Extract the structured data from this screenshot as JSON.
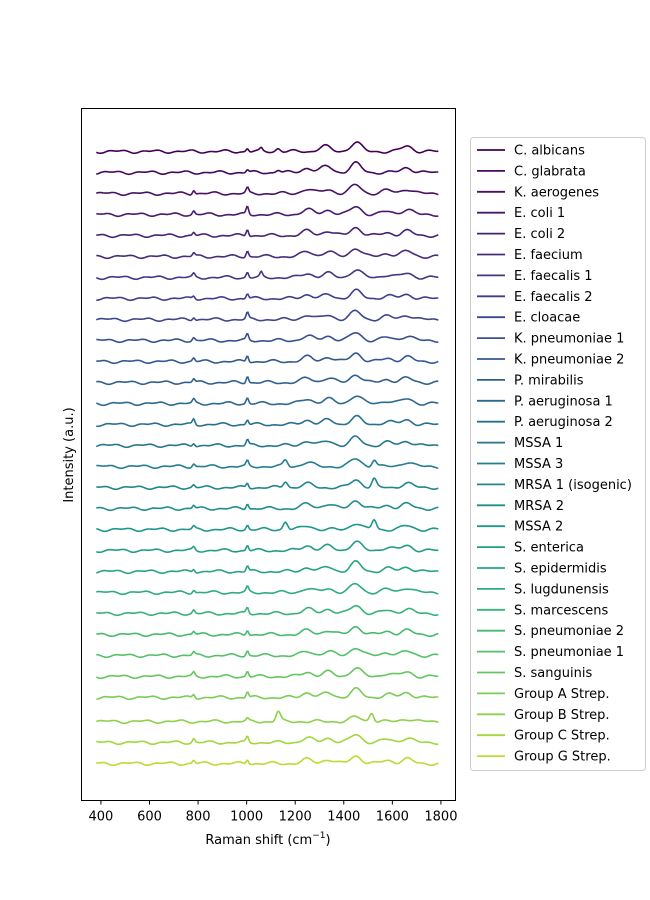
{
  "chart_data": {
    "type": "line",
    "title": "",
    "xlabel": "Raman shift (cm",
    "xlabel_sup": "−1",
    "xlabel_tail": ")",
    "ylabel": "Intensity (a.u.)",
    "xlim": [
      320,
      1860
    ],
    "x_range": [
      381,
      1792
    ],
    "xticks": [
      400,
      600,
      800,
      1000,
      1200,
      1400,
      1600,
      1800
    ],
    "yticks": [],
    "grid": false,
    "legend_position": "outside-right",
    "colormap": "viridis",
    "series": [
      {
        "name": "C. albicans",
        "color": "#440154",
        "peaks": [
          [
            1003,
            0.35
          ],
          [
            1060,
            0.3
          ],
          [
            1130,
            0.35
          ],
          [
            1320,
            0.6
          ],
          [
            1450,
            1.0
          ],
          [
            1660,
            0.6
          ]
        ]
      },
      {
        "name": "C. glabrata",
        "color": "#46085c",
        "peaks": [
          [
            1003,
            0.3
          ],
          [
            1130,
            0.3
          ],
          [
            1250,
            0.5
          ],
          [
            1330,
            0.7
          ],
          [
            1450,
            1.0
          ],
          [
            1660,
            0.55
          ]
        ]
      },
      {
        "name": "K. aerogenes",
        "color": "#471164",
        "peaks": [
          [
            782,
            0.45
          ],
          [
            1003,
            0.55
          ],
          [
            1250,
            0.5
          ],
          [
            1335,
            0.45
          ],
          [
            1450,
            0.95
          ],
          [
            1580,
            0.35
          ],
          [
            1660,
            0.5
          ]
        ]
      },
      {
        "name": "E. coli 1",
        "color": "#481a6c",
        "peaks": [
          [
            782,
            0.4
          ],
          [
            1003,
            0.85
          ],
          [
            1250,
            0.55
          ],
          [
            1335,
            0.5
          ],
          [
            1450,
            0.9
          ],
          [
            1580,
            0.35
          ],
          [
            1660,
            0.55
          ]
        ]
      },
      {
        "name": "E. coli 2",
        "color": "#472374",
        "peaks": [
          [
            782,
            0.35
          ],
          [
            1003,
            0.75
          ],
          [
            1250,
            0.5
          ],
          [
            1335,
            0.5
          ],
          [
            1450,
            0.9
          ],
          [
            1580,
            0.3
          ],
          [
            1660,
            0.5
          ]
        ]
      },
      {
        "name": "E. faecium",
        "color": "#462c7b",
        "peaks": [
          [
            782,
            0.35
          ],
          [
            1003,
            0.65
          ],
          [
            1250,
            0.55
          ],
          [
            1335,
            0.55
          ],
          [
            1450,
            0.95
          ],
          [
            1580,
            0.35
          ],
          [
            1660,
            0.6
          ]
        ]
      },
      {
        "name": "E. faecalis 1",
        "color": "#433683",
        "peaks": [
          [
            782,
            0.35
          ],
          [
            1003,
            0.6
          ],
          [
            1060,
            0.5
          ],
          [
            1250,
            0.45
          ],
          [
            1335,
            0.45
          ],
          [
            1450,
            0.85
          ],
          [
            1580,
            0.3
          ],
          [
            1660,
            0.45
          ]
        ]
      },
      {
        "name": "E. faecalis 2",
        "color": "#403e88",
        "peaks": [
          [
            782,
            0.3
          ],
          [
            1003,
            0.55
          ],
          [
            1250,
            0.45
          ],
          [
            1335,
            0.4
          ],
          [
            1450,
            0.85
          ],
          [
            1580,
            0.3
          ],
          [
            1660,
            0.45
          ]
        ]
      },
      {
        "name": "E. cloacae",
        "color": "#3c478b",
        "peaks": [
          [
            782,
            0.35
          ],
          [
            1003,
            0.7
          ],
          [
            1250,
            0.5
          ],
          [
            1335,
            0.5
          ],
          [
            1450,
            0.9
          ],
          [
            1580,
            0.35
          ],
          [
            1660,
            0.5
          ]
        ]
      },
      {
        "name": "K. pneumoniae 1",
        "color": "#38508c",
        "peaks": [
          [
            782,
            0.35
          ],
          [
            1003,
            0.65
          ],
          [
            1250,
            0.5
          ],
          [
            1335,
            0.5
          ],
          [
            1450,
            0.9
          ],
          [
            1580,
            0.35
          ],
          [
            1660,
            0.5
          ]
        ]
      },
      {
        "name": "K. pneumoniae 2",
        "color": "#34588d",
        "peaks": [
          [
            782,
            0.4
          ],
          [
            1003,
            0.7
          ],
          [
            1250,
            0.5
          ],
          [
            1335,
            0.5
          ],
          [
            1450,
            0.95
          ],
          [
            1580,
            0.35
          ],
          [
            1660,
            0.5
          ]
        ]
      },
      {
        "name": "P. mirabilis",
        "color": "#30608e",
        "peaks": [
          [
            782,
            0.4
          ],
          [
            1003,
            0.75
          ],
          [
            1250,
            0.5
          ],
          [
            1335,
            0.5
          ],
          [
            1450,
            0.9
          ],
          [
            1580,
            0.35
          ],
          [
            1660,
            0.5
          ]
        ]
      },
      {
        "name": "P. aeruginosa 1",
        "color": "#2d688e",
        "peaks": [
          [
            782,
            0.4
          ],
          [
            1003,
            0.65
          ],
          [
            1250,
            0.5
          ],
          [
            1335,
            0.5
          ],
          [
            1450,
            0.9
          ],
          [
            1580,
            0.3
          ],
          [
            1660,
            0.5
          ]
        ]
      },
      {
        "name": "P. aeruginosa 2",
        "color": "#29708e",
        "peaks": [
          [
            782,
            0.6
          ],
          [
            1003,
            0.55
          ],
          [
            1250,
            0.5
          ],
          [
            1335,
            0.5
          ],
          [
            1450,
            0.85
          ],
          [
            1580,
            0.35
          ],
          [
            1660,
            0.5
          ]
        ]
      },
      {
        "name": "MSSA 1",
        "color": "#26778e",
        "peaks": [
          [
            782,
            0.35
          ],
          [
            1003,
            0.6
          ],
          [
            1250,
            0.5
          ],
          [
            1335,
            0.5
          ],
          [
            1450,
            0.9
          ],
          [
            1580,
            0.35
          ],
          [
            1660,
            0.5
          ]
        ]
      },
      {
        "name": "MSSA 3",
        "color": "#237f8e",
        "peaks": [
          [
            782,
            0.35
          ],
          [
            1003,
            0.55
          ],
          [
            1160,
            0.7
          ],
          [
            1250,
            0.45
          ],
          [
            1450,
            0.85
          ],
          [
            1525,
            0.8
          ],
          [
            1660,
            0.5
          ]
        ]
      },
      {
        "name": "MRSA 1 (isogenic)",
        "color": "#21868d",
        "peaks": [
          [
            782,
            0.3
          ],
          [
            1003,
            0.5
          ],
          [
            1160,
            0.7
          ],
          [
            1250,
            0.4
          ],
          [
            1450,
            0.85
          ],
          [
            1525,
            0.9
          ],
          [
            1660,
            0.45
          ]
        ]
      },
      {
        "name": "MRSA 2",
        "color": "#1f8e8c",
        "peaks": [
          [
            782,
            0.35
          ],
          [
            1003,
            0.6
          ],
          [
            1250,
            0.5
          ],
          [
            1335,
            0.5
          ],
          [
            1450,
            0.9
          ],
          [
            1580,
            0.35
          ],
          [
            1660,
            0.5
          ]
        ]
      },
      {
        "name": "MSSA 2",
        "color": "#1f968b",
        "peaks": [
          [
            782,
            0.3
          ],
          [
            1003,
            0.5
          ],
          [
            1160,
            0.9
          ],
          [
            1250,
            0.4
          ],
          [
            1450,
            0.7
          ],
          [
            1525,
            1.1
          ],
          [
            1660,
            0.4
          ]
        ]
      },
      {
        "name": "S. enterica",
        "color": "#219d87",
        "peaks": [
          [
            782,
            0.35
          ],
          [
            1003,
            0.6
          ],
          [
            1250,
            0.55
          ],
          [
            1335,
            0.5
          ],
          [
            1450,
            0.95
          ],
          [
            1580,
            0.35
          ],
          [
            1660,
            0.55
          ]
        ]
      },
      {
        "name": "S. epidermidis",
        "color": "#26a483",
        "peaks": [
          [
            782,
            0.35
          ],
          [
            1003,
            0.6
          ],
          [
            1250,
            0.45
          ],
          [
            1335,
            0.5
          ],
          [
            1450,
            1.0
          ],
          [
            1580,
            0.35
          ],
          [
            1660,
            0.5
          ]
        ]
      },
      {
        "name": "S. lugdunensis",
        "color": "#2eac7f",
        "peaks": [
          [
            782,
            0.35
          ],
          [
            1003,
            0.55
          ],
          [
            1250,
            0.45
          ],
          [
            1335,
            0.45
          ],
          [
            1450,
            0.95
          ],
          [
            1580,
            0.35
          ],
          [
            1660,
            0.55
          ]
        ]
      },
      {
        "name": "S. marcescens",
        "color": "#39b279",
        "peaks": [
          [
            782,
            0.4
          ],
          [
            1003,
            0.65
          ],
          [
            1250,
            0.5
          ],
          [
            1335,
            0.5
          ],
          [
            1450,
            0.9
          ],
          [
            1580,
            0.35
          ],
          [
            1660,
            0.5
          ]
        ]
      },
      {
        "name": "S. pneumoniae 2",
        "color": "#47b972",
        "peaks": [
          [
            782,
            0.35
          ],
          [
            1003,
            0.55
          ],
          [
            1250,
            0.45
          ],
          [
            1335,
            0.45
          ],
          [
            1450,
            0.9
          ],
          [
            1580,
            0.35
          ],
          [
            1660,
            0.45
          ]
        ]
      },
      {
        "name": "S. pneumoniae 1",
        "color": "#56c069",
        "peaks": [
          [
            782,
            0.35
          ],
          [
            1003,
            0.55
          ],
          [
            1250,
            0.45
          ],
          [
            1335,
            0.45
          ],
          [
            1450,
            0.9
          ],
          [
            1580,
            0.35
          ],
          [
            1660,
            0.45
          ]
        ]
      },
      {
        "name": "S. sanguinis",
        "color": "#67c55f",
        "peaks": [
          [
            782,
            0.4
          ],
          [
            1003,
            0.6
          ],
          [
            1250,
            0.5
          ],
          [
            1335,
            0.5
          ],
          [
            1450,
            0.95
          ],
          [
            1580,
            0.35
          ],
          [
            1660,
            0.5
          ]
        ]
      },
      {
        "name": "Group A Strep.",
        "color": "#7acc55",
        "peaks": [
          [
            782,
            0.4
          ],
          [
            1003,
            0.65
          ],
          [
            1250,
            0.55
          ],
          [
            1335,
            0.5
          ],
          [
            1450,
            0.9
          ],
          [
            1580,
            0.35
          ],
          [
            1660,
            0.55
          ]
        ]
      },
      {
        "name": "Group B Strep.",
        "color": "#8dd14a",
        "peaks": [
          [
            1003,
            0.25
          ],
          [
            1130,
            1.1
          ],
          [
            1450,
            0.5
          ],
          [
            1515,
            1.0
          ],
          [
            1660,
            0.3
          ]
        ]
      },
      {
        "name": "Group C Strep.",
        "color": "#a3d63d",
        "peaks": [
          [
            782,
            0.45
          ],
          [
            1003,
            0.6
          ],
          [
            1250,
            0.5
          ],
          [
            1335,
            0.5
          ],
          [
            1450,
            0.9
          ],
          [
            1580,
            0.35
          ],
          [
            1660,
            0.5
          ]
        ]
      },
      {
        "name": "Group G Strep.",
        "color": "#b9dd32",
        "peaks": [
          [
            782,
            0.35
          ],
          [
            1003,
            0.5
          ],
          [
            1250,
            0.45
          ],
          [
            1335,
            0.45
          ],
          [
            1450,
            0.85
          ],
          [
            1580,
            0.35
          ],
          [
            1660,
            0.5
          ]
        ]
      }
    ],
    "extra_colors": [
      "#cfe02a",
      "#e5e31f",
      "#fde725"
    ]
  }
}
